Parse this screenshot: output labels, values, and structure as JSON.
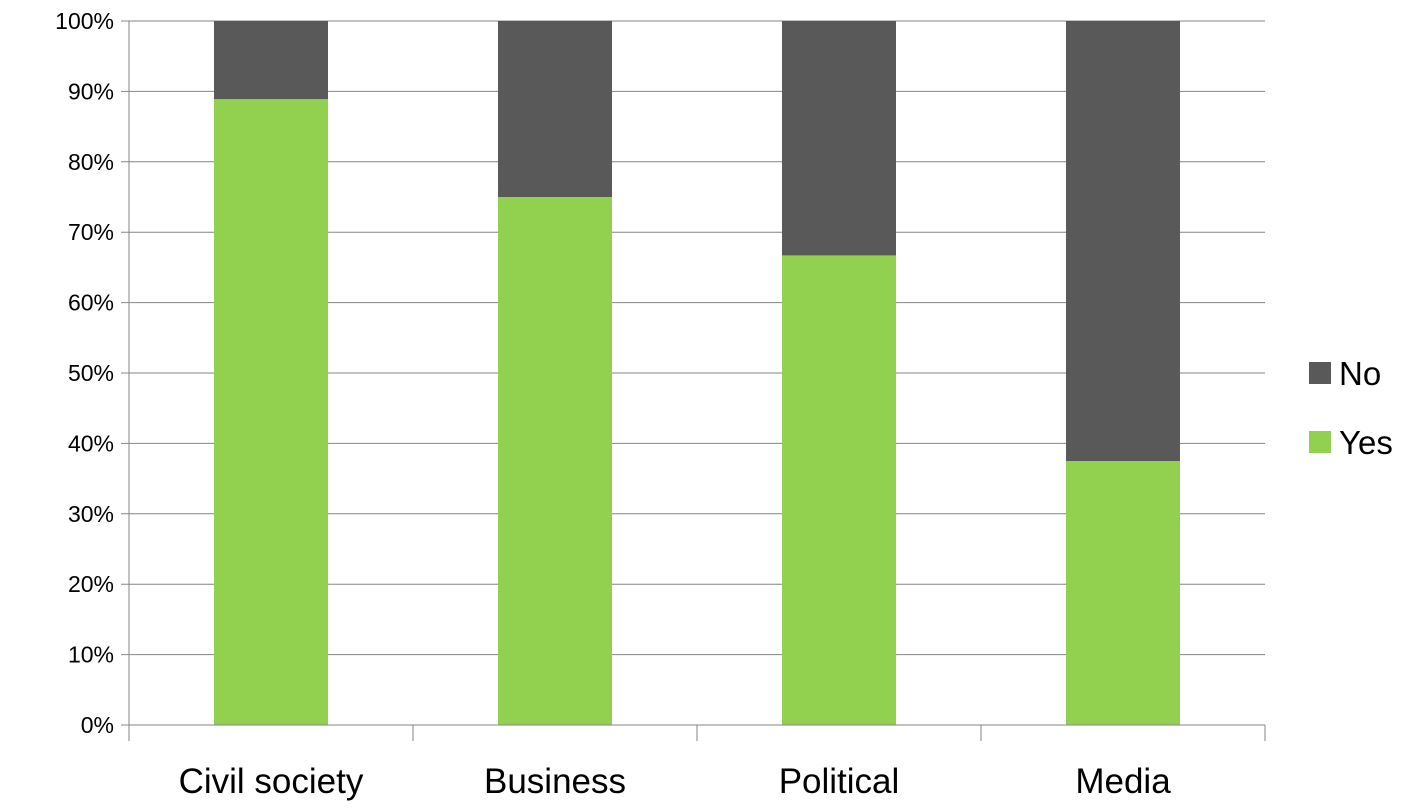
{
  "chart_data": {
    "type": "bar",
    "stacked": true,
    "percent": true,
    "categories": [
      "Civil society",
      "Business",
      "Political",
      "Media"
    ],
    "series": [
      {
        "name": "Yes",
        "color": "#92D050",
        "values": [
          88.9,
          75,
          66.7,
          37.5
        ]
      },
      {
        "name": "No",
        "color": "#595959",
        "values": [
          11.1,
          25,
          33.3,
          62.5
        ]
      }
    ],
    "ylim": [
      0,
      100
    ],
    "yticks": [
      "0%",
      "10%",
      "20%",
      "30%",
      "40%",
      "50%",
      "60%",
      "70%",
      "80%",
      "90%",
      "100%"
    ],
    "grid": true,
    "legend": {
      "position": "right",
      "order": [
        "No",
        "Yes"
      ]
    }
  }
}
